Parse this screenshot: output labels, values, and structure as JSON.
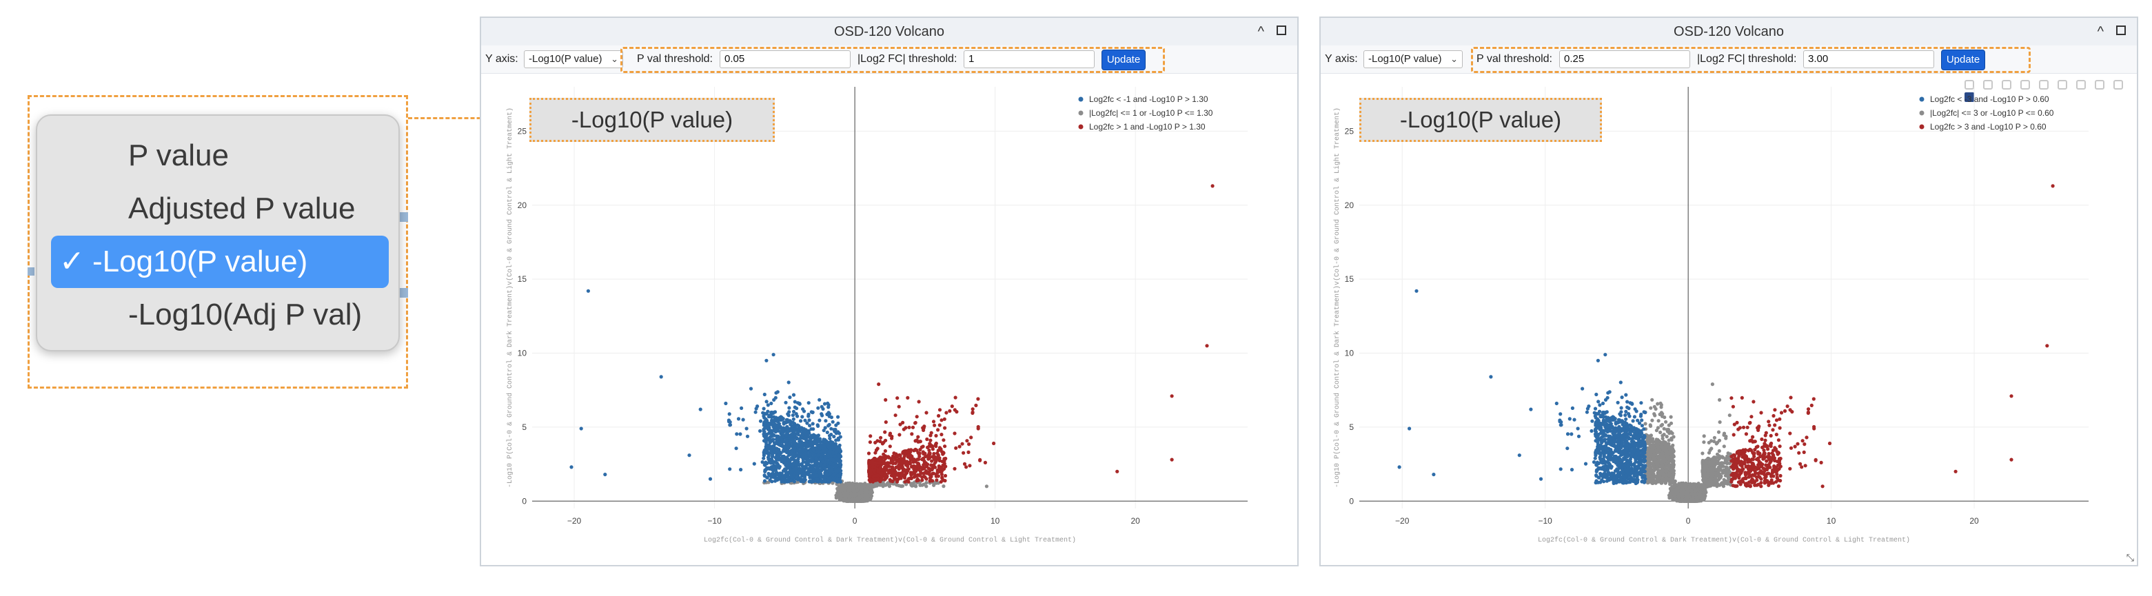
{
  "dropdown": {
    "options": [
      {
        "label": "P value",
        "selected": false
      },
      {
        "label": "Adjusted P value",
        "selected": false
      },
      {
        "label": "-Log10(P value)",
        "selected": true
      },
      {
        "label": "-Log10(Adj P val)",
        "selected": false
      }
    ],
    "check_glyph": "✓"
  },
  "panels": [
    {
      "title": "OSD-120 Volcano",
      "yaxis_label": "Y axis:",
      "yaxis_value": "-Log10(P value)",
      "pval_label": "P val threshold:",
      "pval_value": "0.05",
      "fc_label": "|Log2 FC| threshold:",
      "fc_value": "1",
      "update_label": "Update",
      "ylabel_highlight": "-Log10(P value)"
    },
    {
      "title": "OSD-120 Volcano",
      "yaxis_label": "Y axis:",
      "yaxis_value": "-Log10(P value)",
      "pval_label": "P val threshold:",
      "pval_value": "0.25",
      "fc_label": "|Log2 FC| threshold:",
      "fc_value": "3.00",
      "update_label": "Update",
      "ylabel_highlight": "-Log10(P value)"
    }
  ],
  "chart_data": [
    {
      "type": "scatter",
      "title": "OSD-120 Volcano",
      "xlabel": "Log2fc(Col-0 & Ground Control & Dark Treatment)v(Col-0 & Ground Control & Light Treatment)",
      "ylabel": "-Log10 P(Col-0 & Ground Control & Dark Treatment)v(Col-0 & Ground Control & Light Treatment)",
      "xlim": [
        -23,
        28
      ],
      "ylim": [
        -0.5,
        28
      ],
      "xticks": [
        -20,
        -10,
        0,
        10,
        20
      ],
      "yticks": [
        0,
        5,
        10,
        15,
        20,
        25
      ],
      "grid": true,
      "legend_position": "top-right",
      "fc_threshold": 1,
      "p_threshold": 1.3,
      "series": [
        {
          "name": "Log2fc < -1 and -Log10 P > 1.30",
          "color": "#2e6ca8"
        },
        {
          "name": "|Log2fc| <= 1 or -Log10 P <= 1.30",
          "color": "#8c8c8c"
        },
        {
          "name": "Log2fc > 1 and -Log10 P > 1.30",
          "color": "#a82828"
        }
      ],
      "highlight_points": [
        [
          -19,
          14.2
        ],
        [
          -19.5,
          4.9
        ],
        [
          -20.2,
          2.3
        ],
        [
          -17.8,
          1.8
        ],
        [
          -13.8,
          8.4
        ],
        [
          -11.8,
          3.1
        ],
        [
          -11,
          6.2
        ],
        [
          -10.3,
          1.5
        ],
        [
          -6.3,
          9.5
        ],
        [
          -5.8,
          9.9
        ],
        [
          -9.2,
          6.6
        ],
        [
          -7.4,
          7.6
        ],
        [
          1.7,
          7.9
        ],
        [
          2.9,
          5.8
        ],
        [
          8.8,
          4.9
        ],
        [
          9.9,
          3.9
        ],
        [
          8.4,
          6.0
        ],
        [
          8.1,
          3.3
        ],
        [
          9.3,
          2.6
        ],
        [
          9.4,
          1.0
        ],
        [
          18.7,
          2.0
        ],
        [
          22.6,
          7.1
        ],
        [
          22.6,
          2.8
        ],
        [
          25.1,
          10.5
        ],
        [
          25.5,
          21.3
        ]
      ]
    },
    {
      "type": "scatter",
      "title": "OSD-120 Volcano",
      "xlabel": "Log2fc(Col-0 & Ground Control & Dark Treatment)v(Col-0 & Ground Control & Light Treatment)",
      "ylabel": "-Log10 P(Col-0 & Ground Control & Dark Treatment)v(Col-0 & Ground Control & Light Treatment)",
      "xlim": [
        -23,
        28
      ],
      "ylim": [
        -0.5,
        28
      ],
      "xticks": [
        -20,
        -10,
        0,
        10,
        20
      ],
      "yticks": [
        0,
        5,
        10,
        15,
        20,
        25
      ],
      "grid": true,
      "legend_position": "top-right",
      "fc_threshold": 3,
      "p_threshold": 0.6,
      "series": [
        {
          "name": "Log2fc < -3 and -Log10 P > 0.60",
          "color": "#2e6ca8"
        },
        {
          "name": "|Log2fc| <= 3 or -Log10 P <= 0.60",
          "color": "#8c8c8c"
        },
        {
          "name": "Log2fc > 3 and -Log10 P > 0.60",
          "color": "#a82828"
        }
      ],
      "highlight_points": [
        [
          -19,
          14.2
        ],
        [
          -19.5,
          4.9
        ],
        [
          -20.2,
          2.3
        ],
        [
          -17.8,
          1.8
        ],
        [
          -13.8,
          8.4
        ],
        [
          -11.8,
          3.1
        ],
        [
          -11,
          6.2
        ],
        [
          -10.3,
          1.5
        ],
        [
          -6.3,
          9.5
        ],
        [
          -5.8,
          9.9
        ],
        [
          -9.2,
          6.6
        ],
        [
          -7.4,
          7.6
        ],
        [
          1.7,
          7.9
        ],
        [
          2.9,
          5.8
        ],
        [
          8.8,
          4.9
        ],
        [
          9.9,
          3.9
        ],
        [
          8.4,
          6.0
        ],
        [
          8.1,
          3.3
        ],
        [
          9.3,
          2.6
        ],
        [
          9.4,
          1.0
        ],
        [
          18.7,
          2.0
        ],
        [
          22.6,
          7.1
        ],
        [
          22.6,
          2.8
        ],
        [
          25.1,
          10.5
        ],
        [
          25.5,
          21.3
        ]
      ]
    }
  ]
}
